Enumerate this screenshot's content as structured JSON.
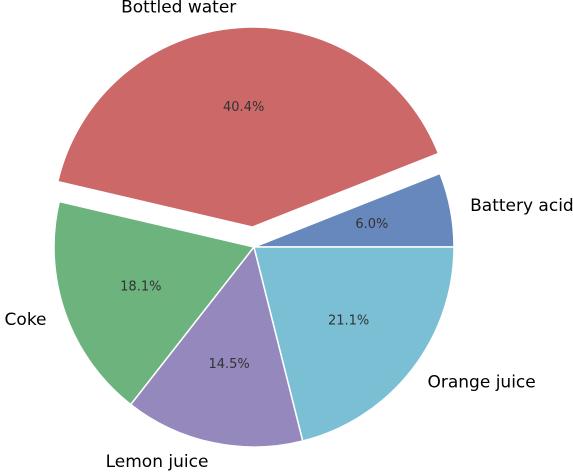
{
  "chart_data": {
    "type": "pie",
    "title": "",
    "slices": [
      {
        "label": "Battery acid",
        "value": 6.0,
        "pct_label": "6.0%",
        "color": "#6688bd",
        "explode": 0
      },
      {
        "label": "Bottled water",
        "value": 40.4,
        "pct_label": "40.4%",
        "color": "#cc6868",
        "explode": 0.1
      },
      {
        "label": "Coke",
        "value": 18.1,
        "pct_label": "18.1%",
        "color": "#6db37e",
        "explode": 0
      },
      {
        "label": "Lemon juice",
        "value": 14.5,
        "pct_label": "14.5%",
        "color": "#9588bd",
        "explode": 0
      },
      {
        "label": "Orange juice",
        "value": 21.1,
        "pct_label": "21.1%",
        "color": "#7abfd3",
        "explode": 0
      }
    ],
    "start_angle_deg": 0,
    "direction": "counterclockwise",
    "legend": "none"
  }
}
